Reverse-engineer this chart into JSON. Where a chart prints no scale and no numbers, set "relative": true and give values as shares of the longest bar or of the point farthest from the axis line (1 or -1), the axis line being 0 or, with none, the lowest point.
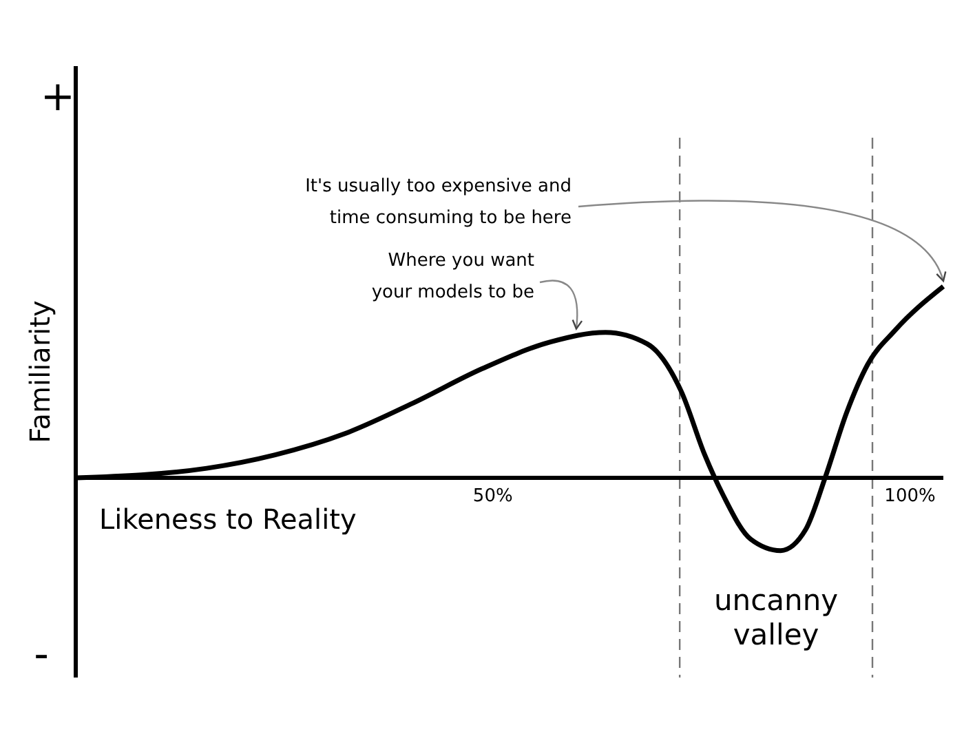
{
  "chart_data": {
    "type": "line",
    "relative": true,
    "xlabel": "Likeness to Reality",
    "ylabel": "Familiarity",
    "xlim": [
      0,
      104
    ],
    "xticks": [
      {
        "value": 50,
        "label": "50%"
      },
      {
        "value": 100,
        "label": "100%"
      }
    ],
    "x": [
      0,
      15.7,
      23.9,
      32.2,
      40.4,
      48.7,
      56.9,
      63.5,
      68.5,
      72.6,
      75.4,
      77.6,
      80.9,
      84.5,
      87.5,
      89.9,
      92.4,
      94.9,
      98.2,
      104
    ],
    "series": [
      {
        "color": "#000000",
        "values": [
          0,
          0.05,
          0.12,
          0.23,
          0.39,
          0.57,
          0.71,
          0.76,
          0.7,
          0.45,
          0.12,
          -0.09,
          -0.32,
          -0.38,
          -0.27,
          0.01,
          0.34,
          0.59,
          0.77,
          1.0
        ]
      }
    ],
    "ref_lines": [
      {
        "axis": "x",
        "value": 72.4,
        "color": "#777777",
        "line_style": "dashed"
      },
      {
        "axis": "x",
        "value": 95.5,
        "color": "#777777",
        "line_style": "dashed"
      }
    ],
    "annotations": [
      "+",
      "-",
      "uncanny\nvalley",
      {
        "text": "Where you want\nyour models to be",
        "x": 60,
        "y": 0.75
      },
      {
        "text": "It's usually too expensive and\ntime consuming to be here",
        "x": 104,
        "y": 1.0
      }
    ],
    "marker": "none",
    "line_style": "solid"
  }
}
